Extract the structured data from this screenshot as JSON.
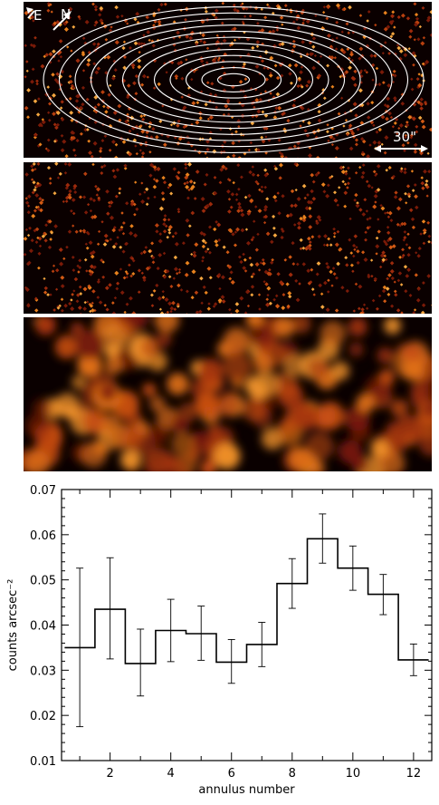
{
  "images": {
    "compass_e": "E",
    "compass_n": "N",
    "scale_label": "30\""
  },
  "chart_data": {
    "type": "line",
    "step": true,
    "title": "",
    "xlabel": "annulus number",
    "ylabel": "counts arcsec⁻²",
    "xlim": [
      0.4,
      12.6
    ],
    "ylim": [
      0.01,
      0.07
    ],
    "xticks": [
      2,
      4,
      6,
      8,
      10,
      12
    ],
    "yticks": [
      0.01,
      0.02,
      0.03,
      0.04,
      0.05,
      0.06,
      0.07
    ],
    "ytick_labels": [
      "0.01",
      "0.02",
      "0.03",
      "0.04",
      "0.05",
      "0.06",
      "0.07"
    ],
    "series": [
      {
        "x": [
          1,
          2,
          3,
          4,
          5,
          6,
          7,
          8,
          9,
          10,
          11,
          12
        ],
        "values": [
          0.035,
          0.0435,
          0.0315,
          0.0388,
          0.0381,
          0.0318,
          0.0357,
          0.0492,
          0.0591,
          0.0526,
          0.0468,
          0.0323
        ],
        "err_low": [
          0.0175,
          0.0325,
          0.0243,
          0.0319,
          0.0322,
          0.0271,
          0.0308,
          0.0437,
          0.0537,
          0.0477,
          0.0423,
          0.0288
        ],
        "err_high": [
          0.0526,
          0.0549,
          0.0391,
          0.0457,
          0.0442,
          0.0368,
          0.0406,
          0.0547,
          0.0646,
          0.0575,
          0.0512,
          0.0358
        ]
      }
    ],
    "grid": false,
    "legend": "none"
  }
}
